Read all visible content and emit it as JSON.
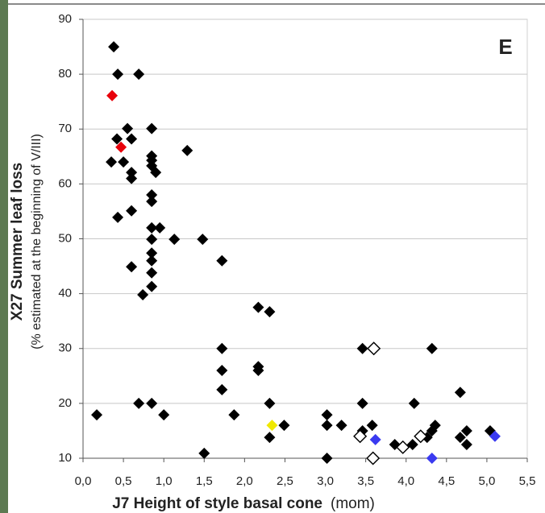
{
  "chart_data": {
    "type": "scatter",
    "panel_label": "E",
    "y_title": "X27   Summer leaf loss",
    "y_subtitle": "(% estimated at the beginning of V/III)",
    "x_title": "J7   Height of style basal cone",
    "x_unit": "(mom)",
    "xlim": [
      0,
      5.5
    ],
    "ylim": [
      10,
      90
    ],
    "xticks": [
      {
        "value": 0,
        "label": "0,0"
      },
      {
        "value": 0.5,
        "label": "0,5"
      },
      {
        "value": 1,
        "label": "1,0"
      },
      {
        "value": 1.5,
        "label": "1,5"
      },
      {
        "value": 2,
        "label": "2,0"
      },
      {
        "value": 2.5,
        "label": "2,5"
      },
      {
        "value": 3,
        "label": "3,0"
      },
      {
        "value": 3.5,
        "label": "3,5"
      },
      {
        "value": 4,
        "label": "4,0"
      },
      {
        "value": 4.5,
        "label": "4,5"
      },
      {
        "value": 5,
        "label": "5,0"
      },
      {
        "value": 5.5,
        "label": "5,5"
      }
    ],
    "yticks": [
      10,
      20,
      30,
      40,
      50,
      60,
      70,
      80,
      90
    ],
    "grid": true,
    "series": [
      {
        "color": "#000000",
        "filled": true,
        "x": [
          0.38,
          0.43,
          0.69,
          0.35,
          0.42,
          0.55,
          0.6,
          0.5,
          0.6,
          0.6,
          0.6,
          0.43,
          0.6,
          0.85,
          0.85,
          0.85,
          0.85,
          0.9,
          0.85,
          0.85,
          0.85,
          0.95,
          0.85,
          0.85,
          0.85,
          0.85,
          0.85,
          0.74,
          1.29,
          1.13,
          1.48,
          1.72,
          2.17,
          2.31,
          1.72,
          1.72,
          2.17,
          2.17,
          1.72,
          0.69,
          0.85,
          1.0,
          0.17,
          1.87,
          1.5,
          2.31,
          2.31,
          2.49,
          3.02,
          3.02,
          3.02,
          3.2,
          3.46,
          3.46,
          3.46,
          3.58,
          3.86,
          4.08,
          4.1,
          4.32,
          4.32,
          4.36,
          4.26,
          4.67,
          4.67,
          4.75,
          4.75,
          5.04
        ],
        "values": [
          85,
          80,
          80,
          64,
          68.2,
          70.1,
          68.2,
          64,
          62.1,
          61,
          55.1,
          53.9,
          44.9,
          70.1,
          65.1,
          64.3,
          63.3,
          62.1,
          58,
          56.8,
          52,
          52,
          49.9,
          47.4,
          46,
          43.8,
          41.3,
          39.8,
          66.1,
          49.9,
          49.9,
          46,
          37.5,
          36.7,
          30,
          26,
          26.7,
          26,
          22.5,
          20,
          20,
          17.9,
          17.9,
          17.9,
          10.9,
          20,
          13.8,
          16,
          17.9,
          16,
          10,
          16,
          30,
          20,
          15,
          16,
          12.5,
          12.5,
          20,
          30,
          15,
          16,
          13.8,
          22,
          13.8,
          15,
          12.5,
          15
        ]
      },
      {
        "color": "#e8000b",
        "filled": true,
        "x": [
          0.36,
          0.47
        ],
        "values": [
          76.1,
          66.7
        ]
      },
      {
        "color": "#f0e800",
        "filled": true,
        "x": [
          2.34
        ],
        "values": [
          16
        ]
      },
      {
        "color": "#3a3af0",
        "filled": true,
        "x": [
          3.62,
          4.32,
          5.1
        ],
        "values": [
          13.4,
          10,
          14
        ]
      },
      {
        "color": "#000000",
        "filled": false,
        "x": [
          3.6,
          3.43,
          3.96,
          4.18,
          3.59
        ],
        "values": [
          30,
          14,
          12,
          14,
          10
        ]
      }
    ]
  }
}
